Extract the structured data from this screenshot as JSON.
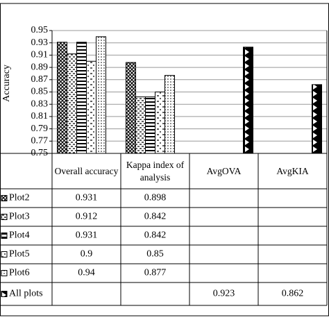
{
  "chart_data": {
    "type": "bar",
    "y_label": "Accuracy",
    "categories": [
      "Overall accuracy",
      "Kappa index of analysis",
      "AvgOVA",
      "AvgKIA"
    ],
    "series": [
      {
        "name": "Plot2",
        "color": "#000000",
        "values": [
          0.931,
          0.898,
          null,
          null
        ]
      },
      {
        "name": "Plot3",
        "color": "#000000",
        "values": [
          0.912,
          0.842,
          null,
          null
        ]
      },
      {
        "name": "Plot4",
        "color": "#000000",
        "values": [
          0.931,
          0.842,
          null,
          null
        ]
      },
      {
        "name": "Plot5",
        "color": "#000000",
        "values": [
          0.9,
          0.85,
          null,
          null
        ]
      },
      {
        "name": "Plot6",
        "color": "#000000",
        "values": [
          0.94,
          0.877,
          null,
          null
        ]
      },
      {
        "name": "All plots",
        "color": "#000000",
        "values": [
          null,
          null,
          0.923,
          0.862
        ]
      }
    ],
    "ylim": [
      0.75,
      0.95
    ],
    "yticks": [
      0.75,
      0.77,
      0.79,
      0.81,
      0.83,
      0.85,
      0.87,
      0.89,
      0.91,
      0.93,
      0.95
    ],
    "grid": true,
    "data_table": true
  }
}
